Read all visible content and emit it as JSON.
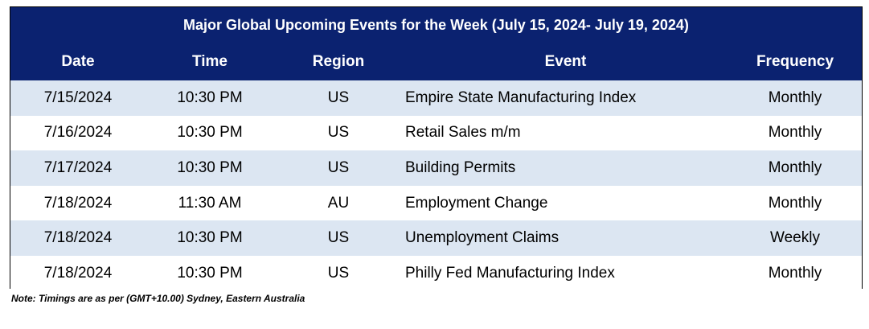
{
  "header": {
    "title": "Major Global Upcoming Events for the Week (July 15, 2024- July 19, 2024)"
  },
  "table": {
    "columns": [
      "Date",
      "Time",
      "Region",
      "Event",
      "Frequency"
    ],
    "rows": [
      [
        "7/15/2024",
        "10:30 PM",
        "US",
        "Empire State Manufacturing Index",
        "Monthly"
      ],
      [
        "7/16/2024",
        "10:30 PM",
        "US",
        "Retail Sales m/m",
        "Monthly"
      ],
      [
        "7/17/2024",
        "10:30 PM",
        "US",
        "Building Permits",
        "Monthly"
      ],
      [
        "7/18/2024",
        "11:30 AM",
        "AU",
        "Employment Change",
        "Monthly"
      ],
      [
        "7/18/2024",
        "10:30 PM",
        "US",
        "Unemployment Claims",
        "Weekly"
      ],
      [
        "7/18/2024",
        "10:30 PM",
        "US",
        "Philly Fed Manufacturing Index",
        "Monthly"
      ]
    ]
  },
  "note": "Note: Timings are as per (GMT+10.00) Sydney, Eastern Australia"
}
